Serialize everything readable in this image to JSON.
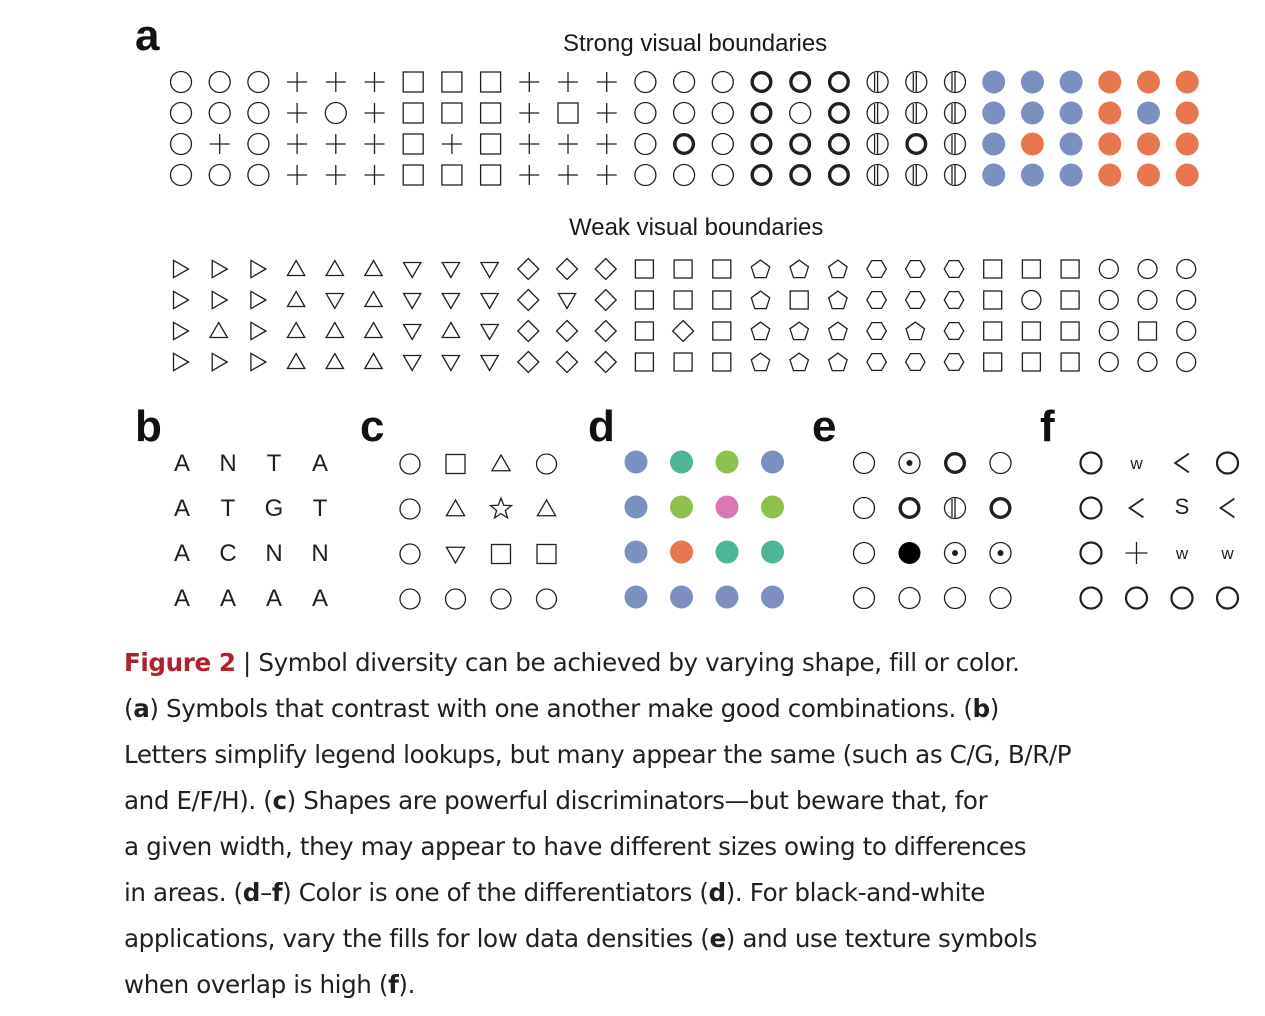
{
  "panels": {
    "a": {
      "letter": "a",
      "strong_title": "Strong visual boundaries",
      "weak_title": "Weak visual boundaries",
      "strong_grid": [
        [
          "circle",
          "circle",
          "circle",
          "plus",
          "plus",
          "plus",
          "square",
          "square",
          "square",
          "plus",
          "plus",
          "plus",
          "circle",
          "circle",
          "circle",
          "bold-circle",
          "bold-circle",
          "bold-circle",
          "barred-circle",
          "barred-circle",
          "barred-circle",
          "blue-dot",
          "blue-dot",
          "blue-dot",
          "orange-dot",
          "orange-dot",
          "orange-dot"
        ],
        [
          "circle",
          "circle",
          "circle",
          "plus",
          "circle",
          "plus",
          "square",
          "square",
          "square",
          "plus",
          "square",
          "plus",
          "circle",
          "circle",
          "circle",
          "bold-circle",
          "circle",
          "bold-circle",
          "barred-circle",
          "barred-circle",
          "barred-circle",
          "blue-dot",
          "blue-dot",
          "blue-dot",
          "orange-dot",
          "blue-dot",
          "orange-dot"
        ],
        [
          "circle",
          "plus",
          "circle",
          "plus",
          "plus",
          "plus",
          "square",
          "plus",
          "square",
          "plus",
          "plus",
          "plus",
          "circle",
          "bold-circle",
          "circle",
          "bold-circle",
          "bold-circle",
          "bold-circle",
          "barred-circle",
          "bold-circle",
          "barred-circle",
          "blue-dot",
          "orange-dot",
          "blue-dot",
          "orange-dot",
          "orange-dot",
          "orange-dot"
        ],
        [
          "circle",
          "circle",
          "circle",
          "plus",
          "plus",
          "plus",
          "square",
          "square",
          "square",
          "plus",
          "plus",
          "plus",
          "circle",
          "circle",
          "circle",
          "bold-circle",
          "bold-circle",
          "bold-circle",
          "barred-circle",
          "barred-circle",
          "barred-circle",
          "blue-dot",
          "blue-dot",
          "blue-dot",
          "orange-dot",
          "orange-dot",
          "orange-dot"
        ]
      ],
      "weak_grid": [
        [
          "tri-right",
          "tri-right",
          "tri-right",
          "tri-up",
          "tri-up",
          "tri-up",
          "tri-down",
          "tri-down",
          "tri-down",
          "diamond",
          "diamond",
          "diamond",
          "square",
          "square",
          "square",
          "pentagon",
          "pentagon",
          "pentagon",
          "hexagon",
          "hexagon",
          "hexagon",
          "square",
          "square",
          "square",
          "circle",
          "circle",
          "circle"
        ],
        [
          "tri-right",
          "tri-right",
          "tri-right",
          "tri-up",
          "tri-down",
          "tri-up",
          "tri-down",
          "tri-down",
          "tri-down",
          "diamond",
          "tri-down",
          "diamond",
          "square",
          "square",
          "square",
          "pentagon",
          "square",
          "pentagon",
          "hexagon",
          "hexagon",
          "hexagon",
          "square",
          "circle",
          "square",
          "circle",
          "circle",
          "circle"
        ],
        [
          "tri-right",
          "tri-up",
          "tri-right",
          "tri-up",
          "tri-up",
          "tri-up",
          "tri-down",
          "tri-up",
          "tri-down",
          "diamond",
          "diamond",
          "diamond",
          "square",
          "diamond",
          "square",
          "pentagon",
          "pentagon",
          "pentagon",
          "hexagon",
          "pentagon",
          "hexagon",
          "square",
          "square",
          "square",
          "circle",
          "square",
          "circle"
        ],
        [
          "tri-right",
          "tri-right",
          "tri-right",
          "tri-up",
          "tri-up",
          "tri-up",
          "tri-down",
          "tri-down",
          "tri-down",
          "diamond",
          "diamond",
          "diamond",
          "square",
          "square",
          "square",
          "pentagon",
          "pentagon",
          "pentagon",
          "hexagon",
          "hexagon",
          "hexagon",
          "square",
          "square",
          "square",
          "circle",
          "circle",
          "circle"
        ]
      ]
    },
    "b": {
      "letter": "b",
      "grid": [
        [
          "A",
          "N",
          "T",
          "A"
        ],
        [
          "A",
          "T",
          "G",
          "T"
        ],
        [
          "A",
          "C",
          "N",
          "N"
        ],
        [
          "A",
          "A",
          "A",
          "A"
        ]
      ]
    },
    "c": {
      "letter": "c",
      "grid": [
        [
          "circle",
          "square",
          "tri-up",
          "circle"
        ],
        [
          "circle",
          "tri-up",
          "star",
          "tri-up"
        ],
        [
          "circle",
          "tri-down",
          "square",
          "square"
        ],
        [
          "circle",
          "circle",
          "circle",
          "circle"
        ]
      ]
    },
    "d": {
      "letter": "d",
      "grid": [
        [
          "blue-dot",
          "teal-dot",
          "green-dot",
          "blue-dot"
        ],
        [
          "blue-dot",
          "green-dot",
          "pink-dot",
          "green-dot"
        ],
        [
          "blue-dot",
          "orange-dot",
          "teal-dot",
          "teal-dot"
        ],
        [
          "blue-dot",
          "blue-dot",
          "blue-dot",
          "blue-dot"
        ]
      ]
    },
    "e": {
      "letter": "e",
      "grid": [
        [
          "circle",
          "dotted-circle",
          "bold-circle",
          "circle"
        ],
        [
          "circle",
          "bold-circle",
          "barred-circle",
          "bold-circle"
        ],
        [
          "circle",
          "filled-circle",
          "dotted-circle",
          "dotted-circle"
        ],
        [
          "circle",
          "circle",
          "circle",
          "circle"
        ]
      ]
    },
    "f": {
      "letter": "f",
      "grid": [
        [
          "mid-circle",
          "w",
          "lt",
          "mid-circle"
        ],
        [
          "mid-circle",
          "lt",
          "S",
          "lt"
        ],
        [
          "mid-circle",
          "plus",
          "w",
          "w"
        ],
        [
          "mid-circle",
          "mid-circle",
          "mid-circle",
          "mid-circle"
        ]
      ]
    }
  },
  "colors": {
    "blue": "#7b8fc0",
    "orange": "#e8774f",
    "teal": "#4cb596",
    "green": "#8dc14d",
    "pink": "#d978b1",
    "stroke": "#231f20",
    "figure_label": "#b0202f"
  },
  "caption": {
    "figure_label": "Figure 2",
    "separator": " | ",
    "line1": "Symbol diversity can be achieved by varying shape, fill or color.",
    "line2_open": "(",
    "line2_bold": "a",
    "line2_rest": ") Symbols that contrast with one another make good combinations. (",
    "line2_bold2": "b",
    "line2_close": ")",
    "line3": "Letters simplify legend lookups, but many appear the same (such as C/G, B/R/P",
    "line4_start": "and E/F/H). (",
    "line4_bold": "c",
    "line4_rest": ") Shapes are powerful discriminators—but beware that, for",
    "line5": "a given width, they may appear to have different sizes owing to differences",
    "line6_start": "in areas. (",
    "line6_bold1": "d",
    "line6_dash": "–",
    "line6_bold2": "f",
    "line6_mid": ") Color is one of the differentiators (",
    "line6_bold3": "d",
    "line6_end": "). For black-and-white",
    "line7_start": "applications, vary the fills for low data densities (",
    "line7_bold": "e",
    "line7_end": ") and use texture symbols",
    "line8_start": "when overlap is high (",
    "line8_bold": "f",
    "line8_end": ")."
  }
}
